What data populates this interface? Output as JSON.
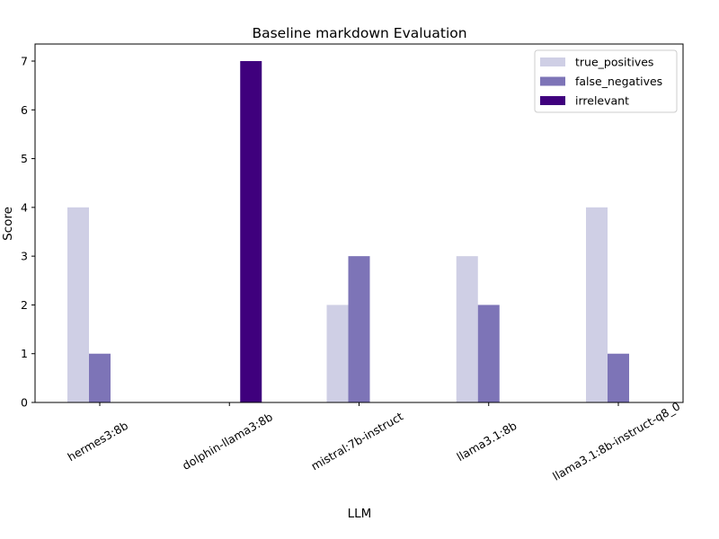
{
  "chart_data": {
    "type": "bar",
    "title": "Baseline markdown Evaluation",
    "xlabel": "LLM",
    "ylabel": "Score",
    "ylim": [
      0,
      7.35
    ],
    "yticks": [
      0,
      1,
      2,
      3,
      4,
      5,
      6,
      7
    ],
    "grid": false,
    "legend_position": "top-right",
    "categories": [
      "hermes3:8b",
      "dolphin-llama3:8b",
      "mistral:7b-instruct",
      "llama3.1:8b",
      "llama3.1:8b-instruct-q8_0"
    ],
    "series": [
      {
        "name": "true_positives",
        "color": "#cfcfe5",
        "values": [
          4,
          0,
          2,
          3,
          4
        ]
      },
      {
        "name": "false_negatives",
        "color": "#7d74b7",
        "values": [
          1,
          0,
          3,
          2,
          1
        ]
      },
      {
        "name": "irrelevant",
        "color": "#3f007d",
        "values": [
          0,
          7,
          0,
          0,
          0
        ]
      }
    ]
  }
}
